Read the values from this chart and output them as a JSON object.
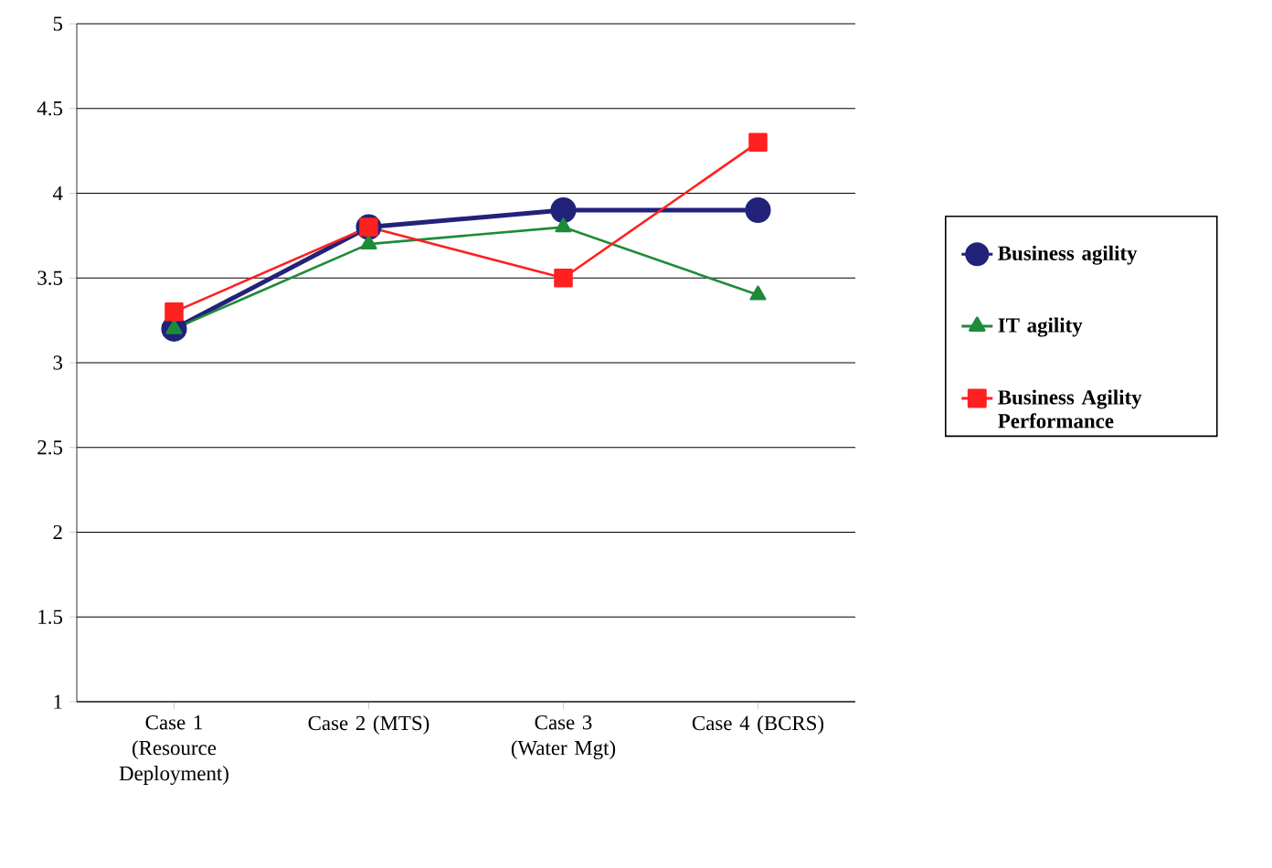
{
  "chart_data": {
    "type": "line",
    "categories": [
      "Case 1 (Resource Deployment)",
      "Case 2 (MTS)",
      "Case 3 (Water Mgt)",
      "Case 4 (BCRS)"
    ],
    "series": [
      {
        "name": "Business agility",
        "color": "#22227a",
        "marker": "circle",
        "values": [
          3.2,
          3.8,
          3.9,
          3.9
        ]
      },
      {
        "name": "IT agility",
        "color": "#1e8a3a",
        "marker": "triangle",
        "values": [
          3.2,
          3.7,
          3.8,
          3.4
        ]
      },
      {
        "name": "Business Agility Performance",
        "color": "#ff2020",
        "marker": "square",
        "values": [
          3.3,
          3.8,
          3.5,
          4.3
        ]
      }
    ],
    "ylim": [
      1,
      5
    ],
    "yticks": [
      1,
      1.5,
      2,
      2.5,
      3,
      3.5,
      4,
      4.5,
      5
    ],
    "grid": "y",
    "legend": "right",
    "line_style": "solid"
  }
}
